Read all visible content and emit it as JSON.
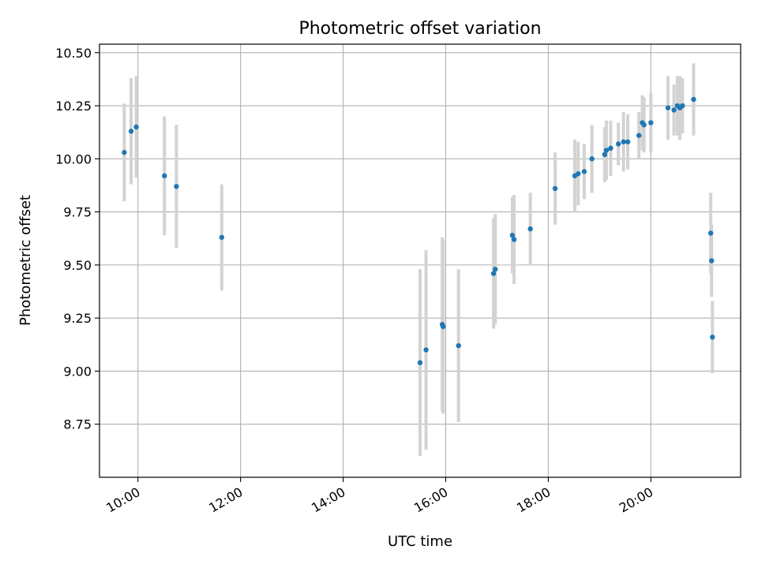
{
  "chart_data": {
    "type": "scatter",
    "title": "Photometric offset variation",
    "xlabel": "UTC time",
    "ylabel": "Photometric offset",
    "x_is_time_hours": true,
    "xlim": [
      "09:15",
      "21:45"
    ],
    "ylim": [
      8.5,
      10.54
    ],
    "xticks": [
      {
        "label": "10:00",
        "value": "10:00"
      },
      {
        "label": "12:00",
        "value": "12:00"
      },
      {
        "label": "14:00",
        "value": "14:00"
      },
      {
        "label": "16:00",
        "value": "16:00"
      },
      {
        "label": "18:00",
        "value": "18:00"
      },
      {
        "label": "20:00",
        "value": "20:00"
      }
    ],
    "yticks": [
      {
        "label": "8.75",
        "value": 8.75
      },
      {
        "label": "9.00",
        "value": 9.0
      },
      {
        "label": "9.25",
        "value": 9.25
      },
      {
        "label": "9.50",
        "value": 9.5
      },
      {
        "label": "9.75",
        "value": 9.75
      },
      {
        "label": "10.00",
        "value": 10.0
      },
      {
        "label": "10.25",
        "value": 10.25
      },
      {
        "label": "10.50",
        "value": 10.5
      }
    ],
    "grid": true,
    "point_color": "#1f77b4",
    "errorbar_color": "#d3d3d3",
    "points": [
      {
        "x": "09:44",
        "y": 10.03,
        "yerr": 0.23
      },
      {
        "x": "09:52",
        "y": 10.13,
        "yerr": 0.25
      },
      {
        "x": "09:58",
        "y": 10.15,
        "yerr": 0.24
      },
      {
        "x": "10:31",
        "y": 9.92,
        "yerr": 0.28
      },
      {
        "x": "10:45",
        "y": 9.87,
        "yerr": 0.29
      },
      {
        "x": "11:38",
        "y": 9.63,
        "yerr": 0.25
      },
      {
        "x": "15:30",
        "y": 9.04,
        "yerr": 0.44
      },
      {
        "x": "15:37",
        "y": 9.1,
        "yerr": 0.47
      },
      {
        "x": "15:56",
        "y": 9.22,
        "yerr": 0.41
      },
      {
        "x": "15:57",
        "y": 9.21,
        "yerr": 0.41
      },
      {
        "x": "16:15",
        "y": 9.12,
        "yerr": 0.36
      },
      {
        "x": "16:56",
        "y": 9.46,
        "yerr": 0.26
      },
      {
        "x": "16:58",
        "y": 9.48,
        "yerr": 0.26
      },
      {
        "x": "17:18",
        "y": 9.64,
        "yerr": 0.18
      },
      {
        "x": "17:20",
        "y": 9.62,
        "yerr": 0.21
      },
      {
        "x": "17:39",
        "y": 9.67,
        "yerr": 0.17
      },
      {
        "x": "18:08",
        "y": 9.86,
        "yerr": 0.17
      },
      {
        "x": "18:31",
        "y": 9.92,
        "yerr": 0.17
      },
      {
        "x": "18:35",
        "y": 9.93,
        "yerr": 0.15
      },
      {
        "x": "18:42",
        "y": 9.94,
        "yerr": 0.13
      },
      {
        "x": "18:51",
        "y": 10.0,
        "yerr": 0.16
      },
      {
        "x": "19:06",
        "y": 10.02,
        "yerr": 0.13
      },
      {
        "x": "19:08",
        "y": 10.04,
        "yerr": 0.14
      },
      {
        "x": "19:13",
        "y": 10.05,
        "yerr": 0.13
      },
      {
        "x": "19:22",
        "y": 10.07,
        "yerr": 0.1
      },
      {
        "x": "19:28",
        "y": 10.08,
        "yerr": 0.14
      },
      {
        "x": "19:33",
        "y": 10.08,
        "yerr": 0.13
      },
      {
        "x": "19:46",
        "y": 10.11,
        "yerr": 0.11
      },
      {
        "x": "19:50",
        "y": 10.17,
        "yerr": 0.13
      },
      {
        "x": "19:52",
        "y": 10.16,
        "yerr": 0.13
      },
      {
        "x": "20:00",
        "y": 10.17,
        "yerr": 0.14
      },
      {
        "x": "20:20",
        "y": 10.24,
        "yerr": 0.15
      },
      {
        "x": "20:27",
        "y": 10.23,
        "yerr": 0.12
      },
      {
        "x": "20:31",
        "y": 10.25,
        "yerr": 0.14
      },
      {
        "x": "20:34",
        "y": 10.24,
        "yerr": 0.15
      },
      {
        "x": "20:37",
        "y": 10.25,
        "yerr": 0.13
      },
      {
        "x": "20:50",
        "y": 10.28,
        "yerr": 0.17
      },
      {
        "x": "21:10",
        "y": 9.65,
        "yerr": 0.19
      },
      {
        "x": "21:11",
        "y": 9.52,
        "yerr": 0.17
      },
      {
        "x": "21:12",
        "y": 9.16,
        "yerr": 0.17
      }
    ]
  }
}
